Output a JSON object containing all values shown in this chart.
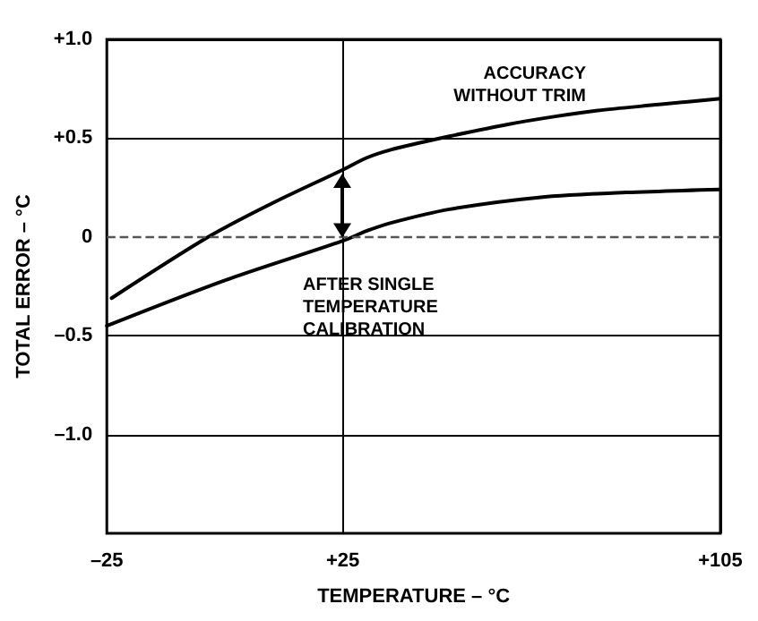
{
  "chart_data": {
    "type": "line",
    "xlabel": "TEMPERATURE – °C",
    "ylabel": "TOTAL ERROR – °C",
    "xlim": [
      -25,
      105
    ],
    "xticks": [
      {
        "value": -25,
        "label": "–25"
      },
      {
        "value": 25,
        "label": "+25"
      },
      {
        "value": 105,
        "label": "+105"
      }
    ],
    "ylim": [
      -1.5,
      1.0
    ],
    "yticks": [
      {
        "value": -1.0,
        "label": "–1.0"
      },
      {
        "value": -0.5,
        "label": "–0.5"
      },
      {
        "value": 0,
        "label": "0"
      },
      {
        "value": 0.5,
        "label": "+0.5"
      },
      {
        "value": 1.0,
        "label": "+1.0"
      }
    ],
    "grid": true,
    "marker": "none",
    "line_style": "solid",
    "series": [
      {
        "color": "#000000",
        "x": [
          -24,
          -3.5,
          10,
          25,
          30,
          35,
          42,
          47.6,
          60,
          70,
          79,
          92,
          105
        ],
        "values": [
          -0.31,
          0,
          0.17,
          0.34,
          0.4,
          0.44,
          0.48,
          0.51,
          0.57,
          0.61,
          0.64,
          0.67,
          0.7
        ]
      },
      {
        "color": "#000000",
        "x": [
          -25,
          0,
          25,
          30,
          35,
          47.6,
          66.5,
          85,
          105
        ],
        "values": [
          -0.45,
          -0.22,
          -0.02,
          0.03,
          0.07,
          0.14,
          0.2,
          0.225,
          0.24
        ]
      }
    ],
    "ref_lines": [
      {
        "axis": "y",
        "value": 0,
        "line_style": "dashed",
        "color": "#555555"
      }
    ],
    "annotations": [
      "ACCURACY\nWITHOUT TRIM",
      "AFTER SINGLE\nTEMPERATURE\nCALIBRATION"
    ]
  }
}
